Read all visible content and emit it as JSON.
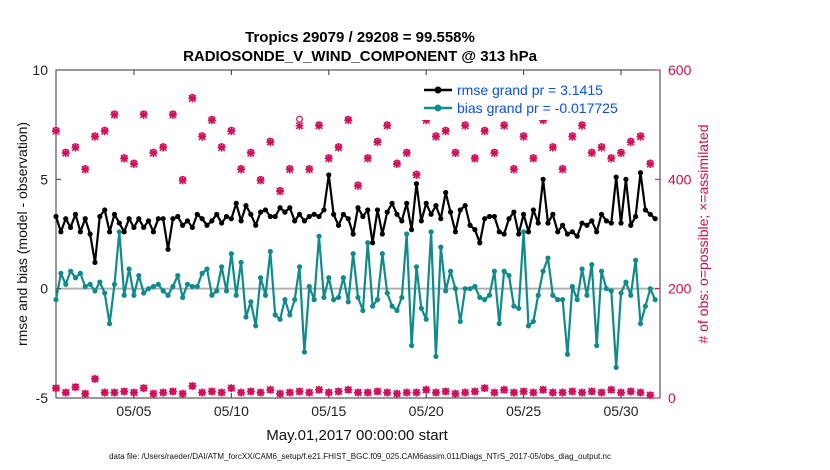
{
  "chart_data": {
    "type": "line",
    "title": "Tropics 29079 / 29208 = 99.558%",
    "subtitle": "RADIOSONDE_V_WIND_COMPONENT @ 313 hPa",
    "xlabel": "May.01,2017 00:00:00 start",
    "ylabel": "rmse and bias (model - observation)",
    "ylabel_right": "# of obs: o=possible; ×=assimilated",
    "xlim": [
      1,
      32
    ],
    "ylim": [
      -5,
      10
    ],
    "ylim_right": [
      0,
      600
    ],
    "x_ticks": [
      5,
      10,
      15,
      20,
      25,
      30
    ],
    "x_tick_labels": [
      "05/05",
      "05/10",
      "05/15",
      "05/20",
      "05/25",
      "05/30"
    ],
    "y_ticks": [
      -5,
      0,
      5,
      10
    ],
    "y_tick_labels": [
      "-5",
      "0",
      "5",
      "10"
    ],
    "y_right_ticks": [
      0,
      200,
      400,
      600
    ],
    "y_right_tick_labels": [
      "0",
      "200",
      "400",
      "600"
    ],
    "zero_line": 0,
    "footer": "data file: /Users/raeder/DAI/ATM_forcXX/CAM6_setup/f.e21.FHIST_BGC.f09_025.CAM6assim.011/Diags_NTrS_2017-05/obs_diag_output.nc",
    "colors": {
      "rmse": "#000000",
      "bias": "#108a8a",
      "obs": "#d0105a",
      "zero": "#b0b0b0",
      "legend_text": "#0a4fe0"
    },
    "series": [
      {
        "name": "rmse grand pr = 3.1415",
        "x": [
          1.0,
          1.25,
          1.5,
          1.75,
          2.0,
          2.25,
          2.5,
          2.75,
          3.0,
          3.25,
          3.5,
          3.75,
          4.0,
          4.25,
          4.5,
          4.75,
          5.0,
          5.25,
          5.5,
          5.75,
          6.0,
          6.25,
          6.5,
          6.75,
          7.0,
          7.25,
          7.5,
          7.75,
          8.0,
          8.25,
          8.5,
          8.75,
          9.0,
          9.25,
          9.5,
          9.75,
          10.0,
          10.25,
          10.5,
          10.75,
          11.0,
          11.25,
          11.5,
          11.75,
          12.0,
          12.25,
          12.5,
          12.75,
          13.0,
          13.25,
          13.5,
          13.75,
          14.0,
          14.25,
          14.5,
          14.75,
          15.0,
          15.25,
          15.5,
          15.75,
          16.0,
          16.25,
          16.5,
          16.75,
          17.0,
          17.25,
          17.5,
          17.75,
          18.0,
          18.25,
          18.5,
          18.75,
          19.0,
          19.25,
          19.5,
          19.75,
          20.0,
          20.25,
          20.5,
          20.75,
          21.0,
          21.25,
          21.5,
          21.75,
          22.0,
          22.25,
          22.5,
          22.75,
          23.0,
          23.25,
          23.5,
          23.75,
          24.0,
          24.25,
          24.5,
          24.75,
          25.0,
          25.25,
          25.5,
          25.75,
          26.0,
          26.25,
          26.5,
          26.75,
          27.0,
          27.25,
          27.5,
          27.75,
          28.0,
          28.25,
          28.5,
          28.75,
          29.0,
          29.25,
          29.5,
          29.75,
          30.0,
          30.25,
          30.5,
          30.75,
          31.0,
          31.25,
          31.5,
          31.75
        ],
        "values": [
          3.3,
          2.6,
          3.2,
          2.8,
          3.4,
          2.6,
          3.2,
          2.5,
          1.2,
          3.3,
          3.6,
          2.6,
          3.4,
          3.0,
          2.6,
          3.2,
          2.8,
          3.2,
          2.8,
          3.1,
          2.6,
          3.2,
          3.2,
          1.8,
          3.2,
          3.3,
          2.9,
          3.1,
          2.8,
          3.4,
          3.2,
          2.9,
          3.1,
          3.4,
          3.0,
          3.3,
          3.2,
          3.9,
          3.1,
          3.8,
          3.4,
          2.9,
          3.5,
          3.6,
          3.3,
          3.3,
          3.7,
          3.5,
          3.7,
          3.1,
          3.4,
          3.1,
          3.3,
          3.4,
          3.3,
          3.6,
          5.2,
          3.4,
          2.9,
          3.4,
          3.2,
          2.5,
          3.7,
          3.3,
          3.6,
          2.1,
          3.6,
          2.5,
          3.5,
          3.9,
          3.4,
          3.1,
          3.9,
          2.7,
          4.8,
          3.1,
          3.9,
          3.4,
          3.8,
          3.2,
          4.4,
          3.5,
          2.6,
          3.6,
          3.8,
          2.9,
          2.7,
          2.1,
          3.2,
          3.3,
          3.3,
          2.6,
          2.5,
          3.2,
          3.5,
          2.5,
          3.4,
          2.6,
          3.6,
          3.0,
          5.0,
          3.0,
          3.4,
          2.6,
          2.9,
          2.5,
          2.6,
          2.4,
          3.0,
          2.9,
          3.1,
          2.6,
          3.4,
          3.1,
          3.0,
          5.1,
          3.0,
          5.0,
          2.9,
          3.3,
          5.3,
          3.6,
          3.4,
          3.2
        ]
      },
      {
        "name": "bias grand pr = -0.017725",
        "x": [
          1.0,
          1.25,
          1.5,
          1.75,
          2.0,
          2.25,
          2.5,
          2.75,
          3.0,
          3.25,
          3.5,
          3.75,
          4.0,
          4.25,
          4.5,
          4.75,
          5.0,
          5.25,
          5.5,
          5.75,
          6.0,
          6.25,
          6.5,
          6.75,
          7.0,
          7.25,
          7.5,
          7.75,
          8.0,
          8.25,
          8.5,
          8.75,
          9.0,
          9.25,
          9.5,
          9.75,
          10.0,
          10.25,
          10.5,
          10.75,
          11.0,
          11.25,
          11.5,
          11.75,
          12.0,
          12.25,
          12.5,
          12.75,
          13.0,
          13.25,
          13.5,
          13.75,
          14.0,
          14.25,
          14.5,
          14.75,
          15.0,
          15.25,
          15.5,
          15.75,
          16.0,
          16.25,
          16.5,
          16.75,
          17.0,
          17.25,
          17.5,
          17.75,
          18.0,
          18.25,
          18.5,
          18.75,
          19.0,
          19.25,
          19.5,
          19.75,
          20.0,
          20.25,
          20.5,
          20.75,
          21.0,
          21.25,
          21.5,
          21.75,
          22.0,
          22.25,
          22.5,
          22.75,
          23.0,
          23.25,
          23.5,
          23.75,
          24.0,
          24.25,
          24.5,
          24.75,
          25.0,
          25.25,
          25.5,
          25.75,
          26.0,
          26.25,
          26.5,
          26.75,
          27.0,
          27.25,
          27.5,
          27.75,
          28.0,
          28.25,
          28.5,
          28.75,
          29.0,
          29.25,
          29.5,
          29.75,
          30.0,
          30.25,
          30.5,
          30.75,
          31.0,
          31.25,
          31.5,
          31.75
        ],
        "values": [
          -0.5,
          0.7,
          0.2,
          0.8,
          0.5,
          0.7,
          0.1,
          0.2,
          -0.1,
          0.3,
          -0.2,
          -1.6,
          0.2,
          2.6,
          -0.3,
          0.9,
          -0.3,
          0.6,
          -0.2,
          0.0,
          0.1,
          0.2,
          -0.1,
          -0.3,
          0.1,
          0.6,
          -0.4,
          0.2,
          0.1,
          0.1,
          0.7,
          0.9,
          -0.3,
          -0.1,
          1.0,
          -0.1,
          1.6,
          -0.3,
          1.2,
          -1.3,
          -0.6,
          -1.7,
          0.5,
          -0.3,
          1.7,
          -1.2,
          -1.4,
          -0.5,
          -1.2,
          -0.5,
          1.0,
          -2.9,
          0.1,
          -0.5,
          2.4,
          -0.4,
          0.5,
          -0.5,
          -0.4,
          0.5,
          -0.6,
          1.6,
          -0.4,
          -1.0,
          2.1,
          -0.8,
          -0.5,
          1.6,
          -0.2,
          -0.8,
          -1.0,
          -0.4,
          2.5,
          -2.6,
          1.0,
          -0.9,
          -1.4,
          2.6,
          -3.1,
          1.9,
          -0.1,
          0.8,
          0.0,
          -1.5,
          0.0,
          0.0,
          0.1,
          -0.4,
          -0.5,
          -0.3,
          0.8,
          -1.6,
          0.8,
          0.6,
          -0.8,
          -0.9,
          2.6,
          -1.7,
          -1.5,
          -0.3,
          0.8,
          1.4,
          -0.3,
          -0.5,
          -0.5,
          -3.0,
          0.1,
          -0.5,
          0.9,
          -0.3,
          1.1,
          -2.6,
          0.8,
          0.0,
          -0.1,
          -3.6,
          -0.2,
          0.3,
          -0.3,
          1.3,
          -1.6,
          -0.8,
          0.0,
          -0.5
        ]
      },
      {
        "name": "# of obs possible",
        "axis": "right",
        "x": [
          1.0,
          1.5,
          2.0,
          2.5,
          3.0,
          3.5,
          4.0,
          4.5,
          5.0,
          5.5,
          6.0,
          6.5,
          7.0,
          7.5,
          8.0,
          8.5,
          9.0,
          9.5,
          10.0,
          10.5,
          11.0,
          11.5,
          12.0,
          12.5,
          13.0,
          13.5,
          14.0,
          14.5,
          15.0,
          15.5,
          16.0,
          16.5,
          17.0,
          17.5,
          18.0,
          18.5,
          19.0,
          19.5,
          20.0,
          20.5,
          21.0,
          21.5,
          22.0,
          22.5,
          23.0,
          23.5,
          24.0,
          24.5,
          25.0,
          25.5,
          26.0,
          26.5,
          27.0,
          27.5,
          28.0,
          28.5,
          29.0,
          29.5,
          30.0,
          30.5,
          31.0,
          31.5
        ],
        "values": [
          490,
          450,
          460,
          420,
          480,
          490,
          520,
          440,
          430,
          520,
          450,
          460,
          520,
          400,
          550,
          480,
          510,
          460,
          490,
          420,
          450,
          400,
          470,
          380,
          420,
          510,
          420,
          500,
          440,
          460,
          510,
          390,
          440,
          470,
          500,
          430,
          450,
          410,
          510,
          480,
          490,
          450,
          500,
          440,
          490,
          450,
          500,
          420,
          480,
          440,
          510,
          460,
          420,
          480,
          500,
          450,
          460,
          440,
          450,
          470,
          480,
          430
        ]
      },
      {
        "name": "# of obs assimilated",
        "axis": "right",
        "x": [
          1.0,
          1.5,
          2.0,
          2.5,
          3.0,
          3.5,
          4.0,
          4.5,
          5.0,
          5.5,
          6.0,
          6.5,
          7.0,
          7.5,
          8.0,
          8.5,
          9.0,
          9.5,
          10.0,
          10.5,
          11.0,
          11.5,
          12.0,
          12.5,
          13.0,
          13.5,
          14.0,
          14.5,
          15.0,
          15.5,
          16.0,
          16.5,
          17.0,
          17.5,
          18.0,
          18.5,
          19.0,
          19.5,
          20.0,
          20.5,
          21.0,
          21.5,
          22.0,
          22.5,
          23.0,
          23.5,
          24.0,
          24.5,
          25.0,
          25.5,
          26.0,
          26.5,
          27.0,
          27.5,
          28.0,
          28.5,
          29.0,
          29.5,
          30.0,
          30.5,
          31.0,
          31.5
        ],
        "values": [
          488,
          448,
          458,
          418,
          478,
          488,
          518,
          438,
          428,
          518,
          448,
          458,
          518,
          398,
          548,
          478,
          508,
          458,
          488,
          418,
          448,
          398,
          468,
          378,
          418,
          498,
          418,
          498,
          438,
          458,
          508,
          388,
          438,
          468,
          498,
          428,
          448,
          408,
          508,
          478,
          488,
          448,
          498,
          438,
          488,
          448,
          498,
          418,
          478,
          438,
          508,
          458,
          418,
          478,
          498,
          448,
          458,
          438,
          448,
          468,
          478,
          428
        ]
      },
      {
        "name": "# of obs near zero",
        "axis": "right",
        "x": [
          1.0,
          1.5,
          2.0,
          2.5,
          3.0,
          3.5,
          4.0,
          4.5,
          5.0,
          5.5,
          6.0,
          6.5,
          7.0,
          7.5,
          8.0,
          8.5,
          9.0,
          9.5,
          10.0,
          10.5,
          11.0,
          11.5,
          12.0,
          12.5,
          13.0,
          13.5,
          14.0,
          14.5,
          15.0,
          15.5,
          16.0,
          16.5,
          17.0,
          17.5,
          18.0,
          18.5,
          19.0,
          19.5,
          20.0,
          20.5,
          21.0,
          21.5,
          22.0,
          22.5,
          23.0,
          23.5,
          24.0,
          24.5,
          25.0,
          25.5,
          26.0,
          26.5,
          27.0,
          27.5,
          28.0,
          28.5,
          29.0,
          29.5,
          30.0,
          30.5,
          31.0,
          31.5
        ],
        "values": [
          18,
          10,
          20,
          8,
          35,
          10,
          10,
          12,
          10,
          18,
          8,
          10,
          12,
          8,
          22,
          10,
          12,
          10,
          18,
          10,
          12,
          10,
          15,
          8,
          10,
          12,
          10,
          15,
          10,
          12,
          15,
          10,
          10,
          12,
          10,
          8,
          10,
          10,
          15,
          10,
          12,
          8,
          10,
          12,
          18,
          10,
          15,
          10,
          12,
          10,
          15,
          10,
          10,
          12,
          10,
          12,
          10,
          15,
          10,
          12,
          10,
          5
        ]
      }
    ]
  }
}
